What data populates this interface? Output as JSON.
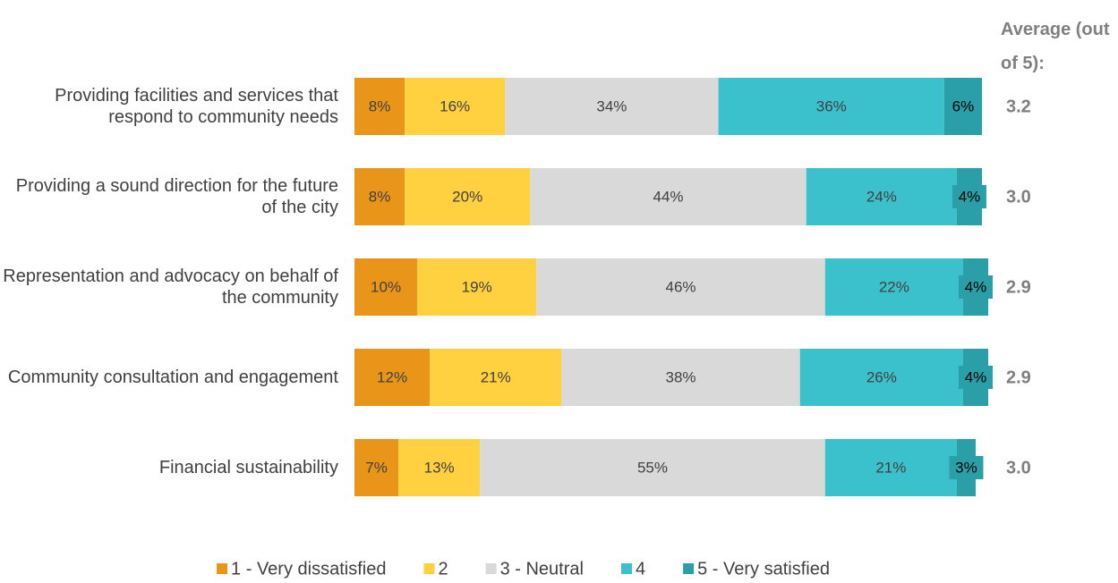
{
  "chart_data": {
    "type": "stacked_bar_horizontal",
    "categories": [
      "Providing facilities and services that respond to community needs",
      "Providing a sound direction for the future of the city",
      "Representation and advocacy on behalf of the community",
      "Community consultation and engagement",
      "Financial sustainability"
    ],
    "series": [
      {
        "name": "1 - Very dissatisfied",
        "color": "#E8951A",
        "values": [
          8,
          8,
          10,
          12,
          7
        ],
        "value_labels": [
          "8%",
          "8%",
          "10%",
          "12%",
          "7%"
        ]
      },
      {
        "name": "2",
        "color": "#FFD03F",
        "values": [
          16,
          20,
          19,
          21,
          13
        ],
        "value_labels": [
          "16%",
          "20%",
          "19%",
          "21%",
          "13%"
        ]
      },
      {
        "name": "3 - Neutral",
        "color": "#D9D9D9",
        "values": [
          34,
          44,
          46,
          38,
          55
        ],
        "value_labels": [
          "34%",
          "44%",
          "46%",
          "38%",
          "55%"
        ]
      },
      {
        "name": "4",
        "color": "#3BC1CC",
        "values": [
          36,
          24,
          22,
          26,
          21
        ],
        "value_labels": [
          "36%",
          "24%",
          "22%",
          "26%",
          "21%"
        ]
      },
      {
        "name": "5 - Very satisfied",
        "color": "#2A9FA8",
        "values": [
          6,
          4,
          4,
          4,
          3
        ],
        "value_labels": [
          "6%",
          "4%",
          "4%",
          "4%",
          "3%"
        ]
      }
    ],
    "average_title": "Average (out of 5):",
    "average_labels": [
      "3.2",
      "3.0",
      "2.9",
      "2.9",
      "3.0"
    ],
    "legend": "bottom"
  }
}
